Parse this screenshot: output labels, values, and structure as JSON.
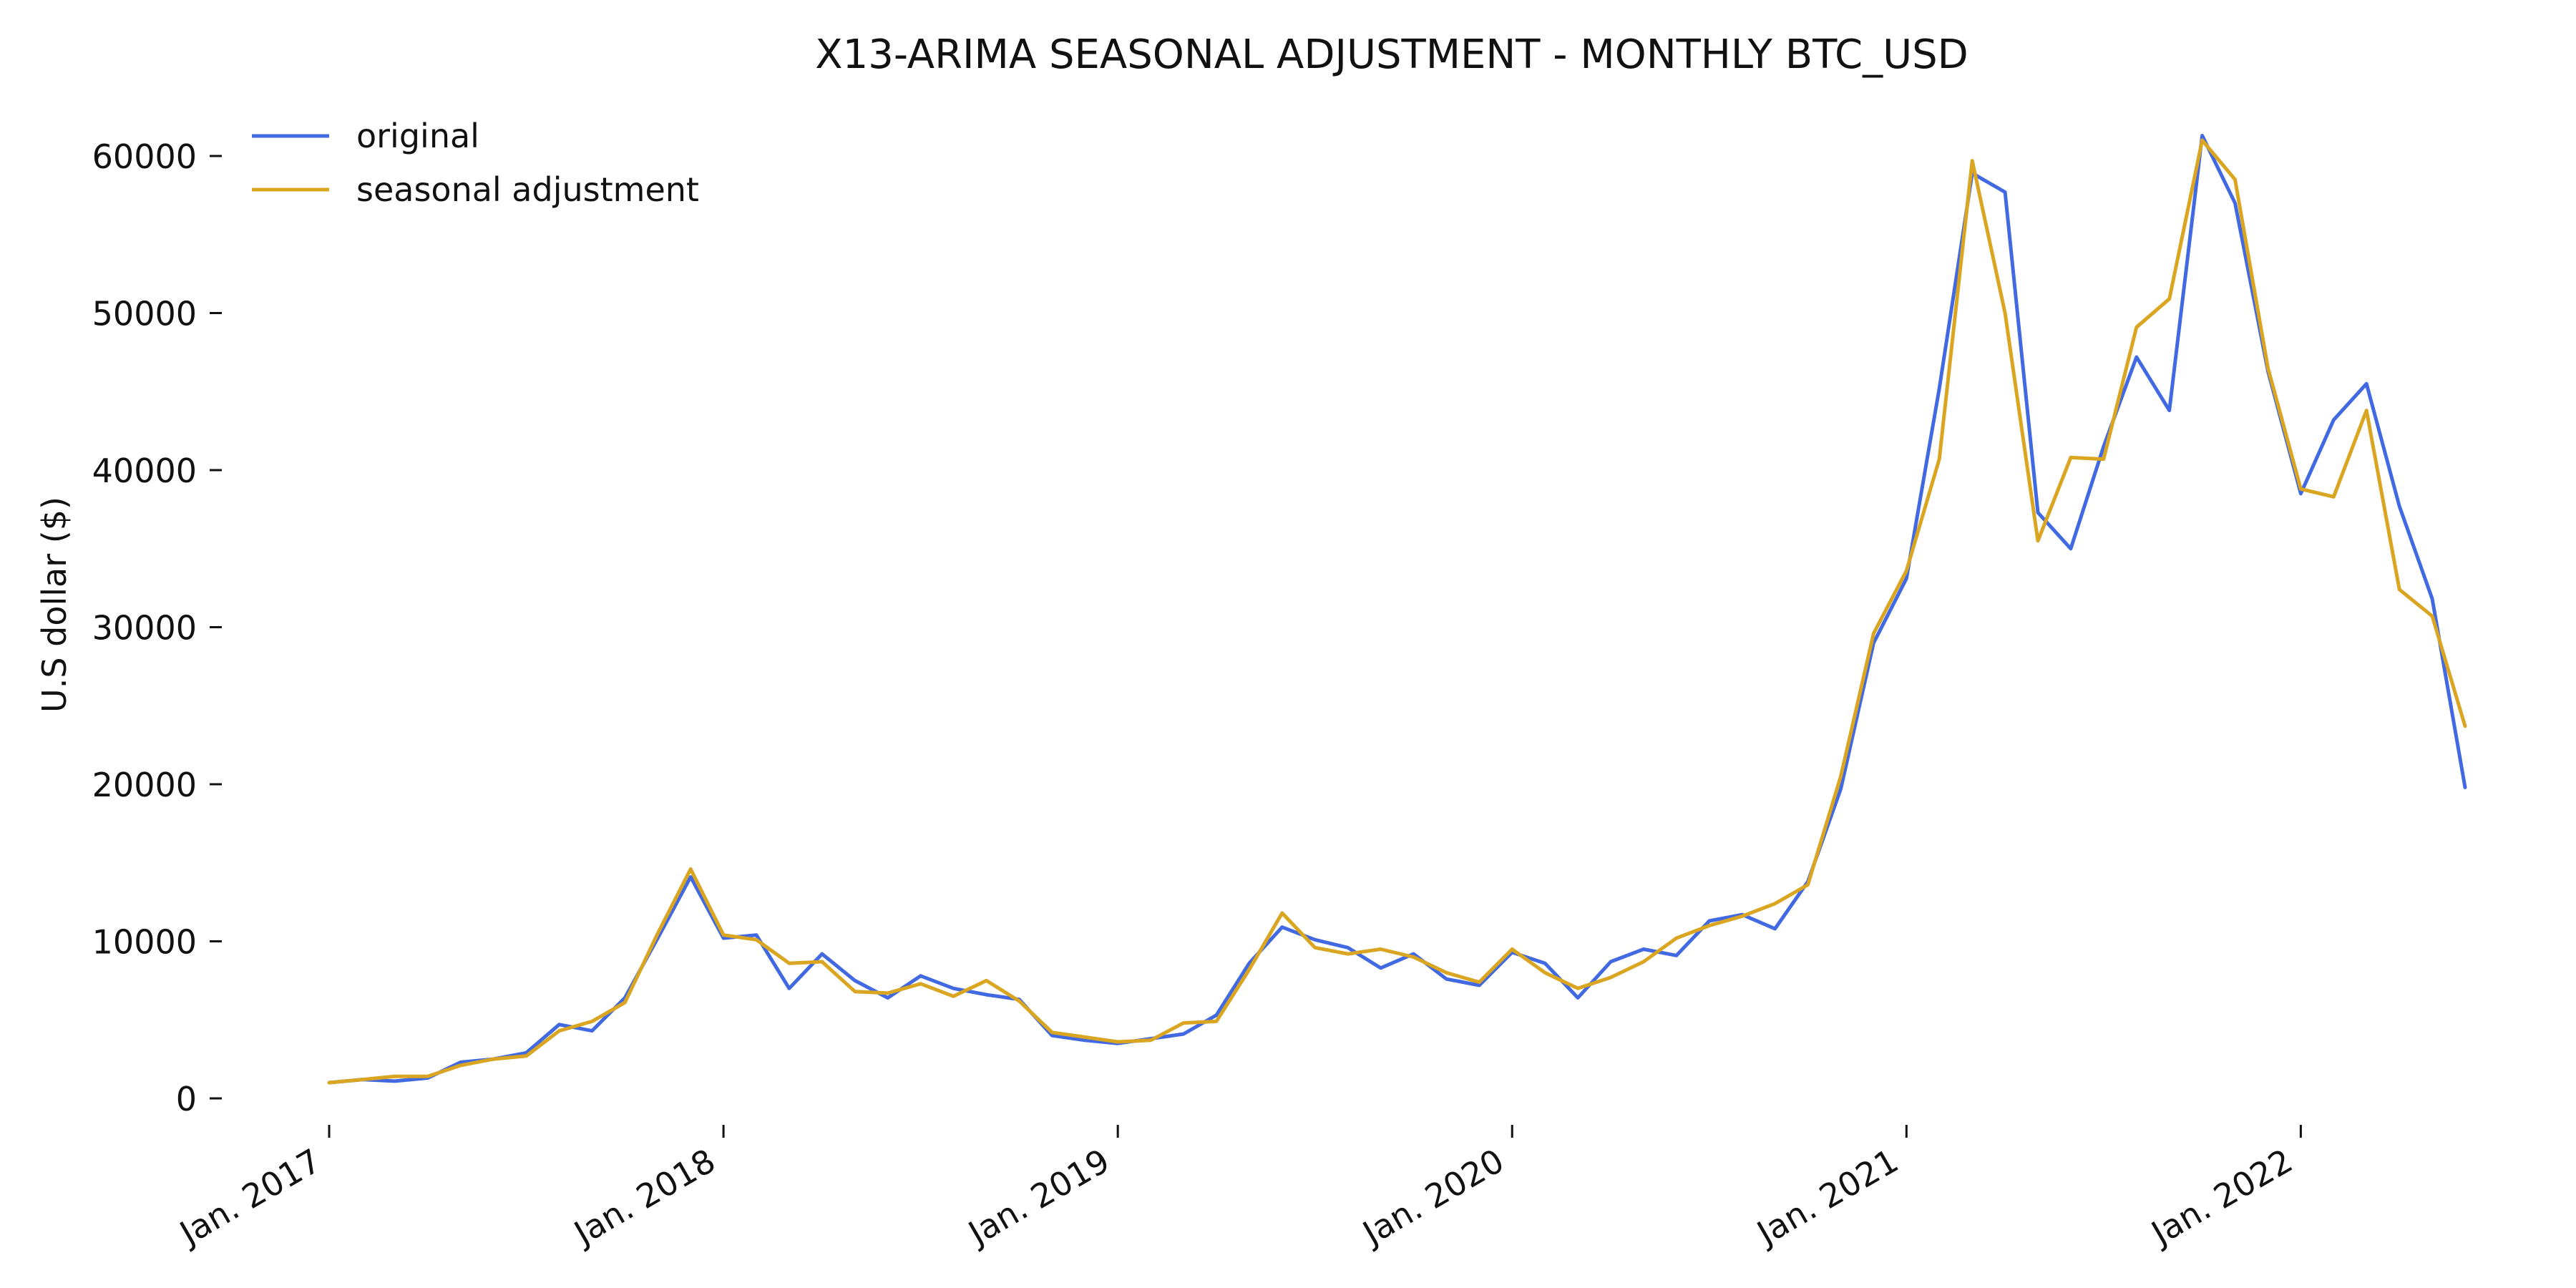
{
  "chart_data": {
    "type": "line",
    "title": "X13-ARIMA SEASONAL ADJUSTMENT - MONTHLY BTC_USD",
    "xlabel": "",
    "ylabel": "U.S dollar ($)",
    "x_start": "2017-01",
    "x_end": "2022-06",
    "xlim": [
      "2017-01",
      "2022-06"
    ],
    "ylim": [
      -1500,
      63000
    ],
    "yticks": [
      0,
      10000,
      20000,
      30000,
      40000,
      50000,
      60000
    ],
    "ytick_labels": [
      "0",
      "10000",
      "20000",
      "30000",
      "40000",
      "50000",
      "60000"
    ],
    "xticks": [
      "2017-01",
      "2018-01",
      "2019-01",
      "2020-01",
      "2021-01",
      "2022-01"
    ],
    "xtick_labels": [
      "Jan. 2017",
      "Jan. 2018",
      "Jan. 2019",
      "Jan. 2020",
      "Jan. 2021",
      "Jan. 2022"
    ],
    "grid": false,
    "legend_position": "top-left",
    "series": [
      {
        "name": "original",
        "color": "#4169e1",
        "values": [
          1000,
          1200,
          1100,
          1300,
          2300,
          2500,
          2900,
          4700,
          4300,
          6400,
          10200,
          14100,
          10200,
          10400,
          7000,
          9200,
          7500,
          6400,
          7800,
          7000,
          6600,
          6300,
          4000,
          3700,
          3500,
          3800,
          4100,
          5300,
          8600,
          10900,
          10100,
          9600,
          8300,
          9200,
          7600,
          7200,
          9300,
          8600,
          6400,
          8700,
          9500,
          9100,
          11300,
          11700,
          10800,
          13800,
          19700,
          29000,
          33100,
          45200,
          58900,
          57700,
          37300,
          35000,
          41500,
          47200,
          43800,
          61300,
          57000,
          46300,
          38500,
          43200,
          45500,
          37700,
          31800,
          19800
        ]
      },
      {
        "name": "seasonal adjustment",
        "color": "#daa520",
        "values": [
          1000,
          1200,
          1400,
          1400,
          2100,
          2500,
          2700,
          4300,
          4900,
          6100,
          10500,
          14600,
          10400,
          10100,
          8600,
          8700,
          6800,
          6700,
          7300,
          6500,
          7500,
          6200,
          4200,
          3900,
          3600,
          3700,
          4800,
          4900,
          8200,
          11800,
          9600,
          9200,
          9500,
          9000,
          8000,
          7400,
          9500,
          8000,
          7000,
          7700,
          8700,
          10200,
          11000,
          11600,
          12400,
          13600,
          20500,
          29600,
          33600,
          40700,
          59700,
          50000,
          35500,
          40800,
          40700,
          49100,
          50900,
          61000,
          58500,
          46500,
          38800,
          38300,
          43800,
          32400,
          30700,
          23700
        ]
      }
    ]
  }
}
